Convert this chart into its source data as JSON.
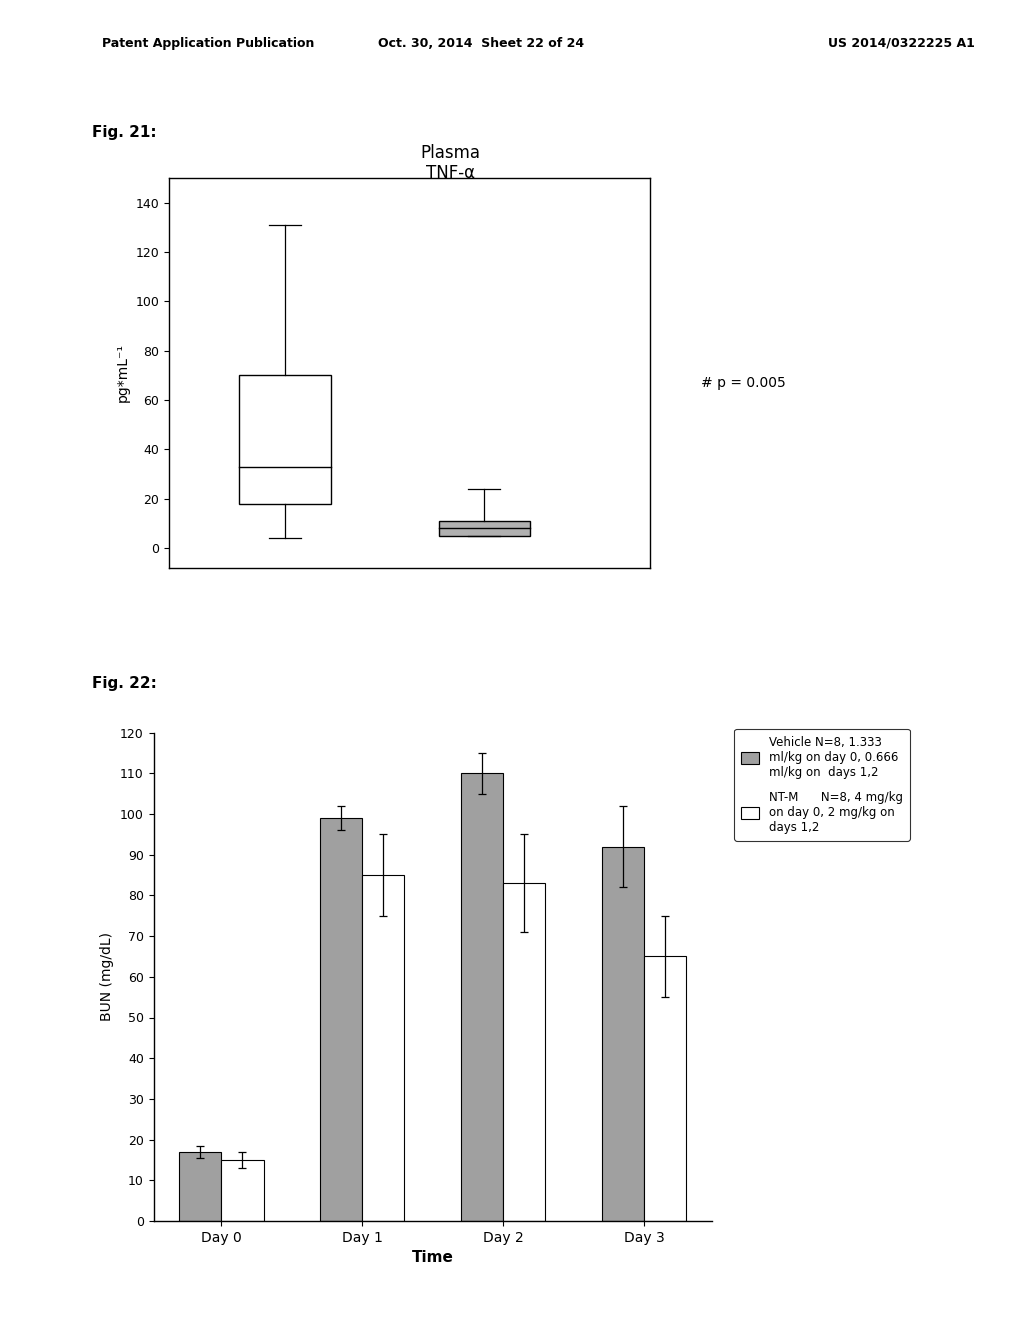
{
  "fig21": {
    "title_line1": "Plasma",
    "title_line2": "TNF-α",
    "ylabel": "pg*mL⁻¹",
    "annotation": "# p = 0.005",
    "box1": {
      "x": 1.0,
      "median": 33,
      "q1": 18,
      "q3": 70,
      "whisker_low": 4,
      "whisker_high": 131,
      "color": "white"
    },
    "box2": {
      "x": 2.2,
      "median": 8,
      "q1": 5,
      "q3": 11,
      "whisker_low": 5,
      "whisker_high": 24,
      "color": "#b0b0b0"
    },
    "ylim": [
      -8,
      150
    ],
    "yticks": [
      0,
      20,
      40,
      60,
      80,
      100,
      120,
      140
    ],
    "xlim": [
      0.3,
      3.2
    ],
    "box_width": 0.55
  },
  "fig22": {
    "xlabel": "Time",
    "ylabel": "BUN (mg/dL)",
    "categories": [
      "Day 0",
      "Day 1",
      "Day 2",
      "Day 3"
    ],
    "vehicle_values": [
      17,
      99,
      110,
      92
    ],
    "vehicle_errors": [
      1.5,
      3,
      5,
      10
    ],
    "ntm_values": [
      15,
      85,
      83,
      65
    ],
    "ntm_errors": [
      2,
      10,
      12,
      10
    ],
    "ylim": [
      0,
      120
    ],
    "yticks": [
      0,
      10,
      20,
      30,
      40,
      50,
      60,
      70,
      80,
      90,
      100,
      110,
      120
    ],
    "vehicle_color": "#a0a0a0",
    "ntm_color": "white",
    "legend_vehicle": "Vehicle N=8, 1.333\nml/kg on day 0, 0.666\nml/kg on  days 1,2",
    "legend_ntm": "NT-M      N=8, 4 mg/kg\non day 0, 2 mg/kg on\ndays 1,2"
  },
  "page_header_left": "Patent Application Publication",
  "page_header_mid": "Oct. 30, 2014  Sheet 22 of 24",
  "page_header_right": "US 2014/0322225 A1",
  "fig21_label": "Fig. 21:",
  "fig22_label": "Fig. 22:",
  "bg_color": "#ffffff",
  "text_color": "#000000"
}
